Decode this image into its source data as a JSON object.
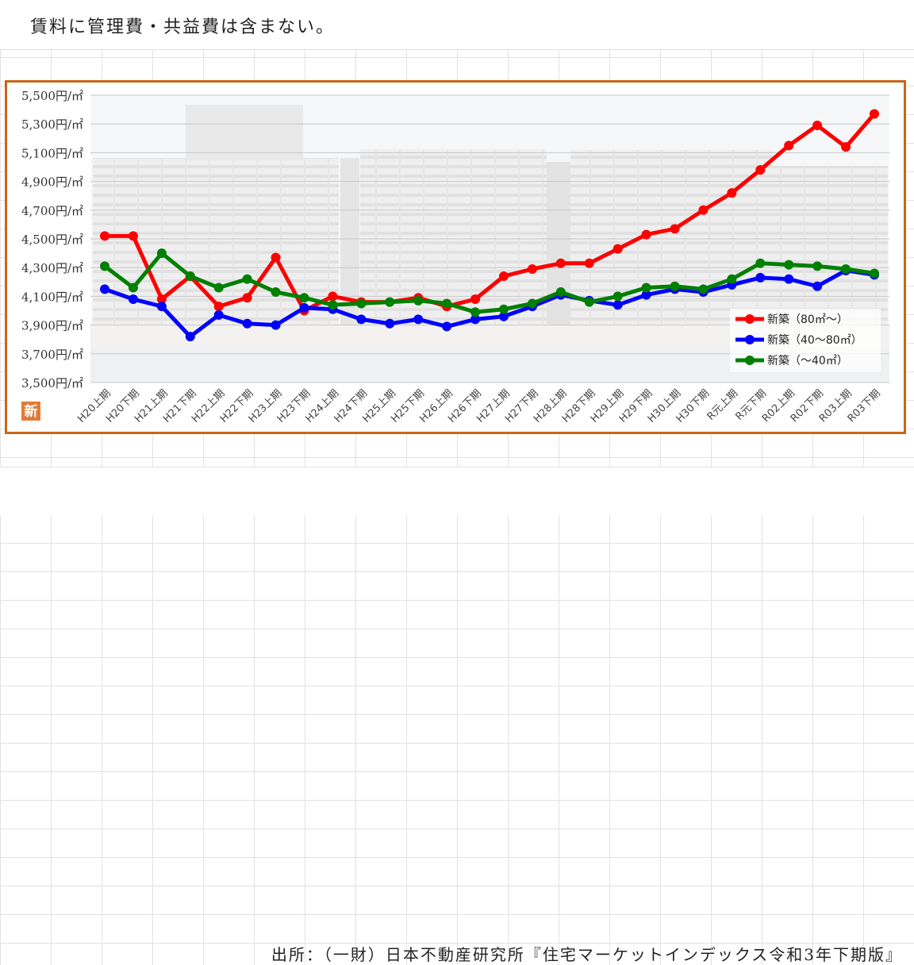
{
  "note": "賃料に管理費・共益費は含まない。",
  "source": "出所：（一財）日本不動産研究所『住宅マーケットインデックス令和3年下期版』",
  "badge": "新",
  "colors": {
    "frame": "#c8661a",
    "badge": "#e07b39"
  },
  "chart_data": {
    "type": "line",
    "title": "",
    "xlabel": "",
    "ylabel": "",
    "ylim": [
      3500,
      5500
    ],
    "y_tick_step": 200,
    "y_tick_suffix": "円/㎡",
    "grid": true,
    "legend_position": "bottom-right",
    "categories": [
      "H20上期",
      "H20下期",
      "H21上期",
      "H21下期",
      "H22上期",
      "H22下期",
      "H23上期",
      "H23下期",
      "H24上期",
      "H24下期",
      "H25上期",
      "H25下期",
      "H26上期",
      "H26下期",
      "H27上期",
      "H27下期",
      "H28上期",
      "H28下期",
      "H29上期",
      "H29下期",
      "H30上期",
      "H30下期",
      "R元上期",
      "R元下期",
      "R02上期",
      "R02下期",
      "R03上期",
      "R03下期"
    ],
    "series": [
      {
        "name": "新築（80㎡～）",
        "color": "#ff0000",
        "values": [
          4520,
          4520,
          4080,
          4240,
          4030,
          4090,
          4370,
          4000,
          4100,
          4060,
          4060,
          4090,
          4030,
          4080,
          4240,
          4290,
          4330,
          4330,
          4430,
          4530,
          4570,
          4700,
          4820,
          4980,
          5150,
          5290,
          5140,
          5370
        ]
      },
      {
        "name": "新築（40～80㎡）",
        "color": "#0000ff",
        "values": [
          4150,
          4080,
          4030,
          3820,
          3970,
          3910,
          3900,
          4020,
          4010,
          3940,
          3910,
          3940,
          3890,
          3940,
          3960,
          4030,
          4110,
          4070,
          4040,
          4110,
          4150,
          4130,
          4180,
          4230,
          4220,
          4170,
          4280,
          4250
        ]
      },
      {
        "name": "新築（～40㎡）",
        "color": "#008000",
        "values": [
          4310,
          4160,
          4400,
          4240,
          4160,
          4220,
          4130,
          4090,
          4040,
          4050,
          4060,
          4070,
          4050,
          3990,
          4010,
          4050,
          4130,
          4060,
          4100,
          4160,
          4170,
          4150,
          4220,
          4330,
          4320,
          4310,
          4290,
          4260
        ]
      }
    ]
  }
}
